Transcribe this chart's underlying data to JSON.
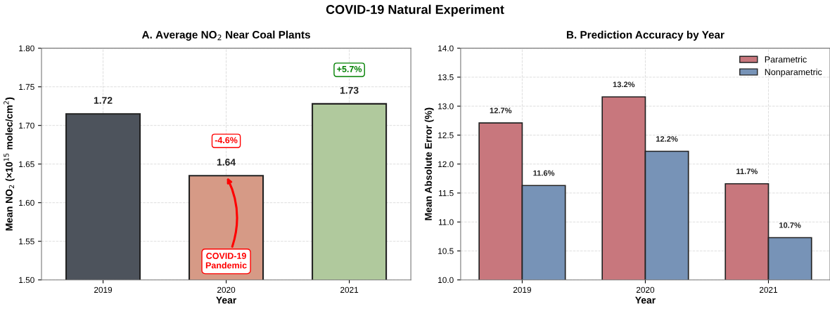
{
  "chart_data": [
    {
      "type": "bar",
      "title": "A. Average NO$_{2}$ Near Coal Plants",
      "xlabel": "Year",
      "ylabel": "Mean NO$_{2}$ (×10$^{15}$ molec/cm$^{2}$)",
      "categories": [
        "2019",
        "2020",
        "2021"
      ],
      "values": [
        1.715,
        1.635,
        1.728
      ],
      "colors": [
        "#4d535c",
        "#d69a86",
        "#b0c99d"
      ],
      "value_labels": [
        "1.72",
        "1.64",
        "1.73"
      ],
      "ylim": [
        1.5,
        1.8
      ],
      "yticks": [
        {
          "value": 1.5,
          "label": "1.50"
        },
        1.55,
        {
          "value": 1.6,
          "label": "1.60"
        },
        1.65,
        {
          "value": 1.7,
          "label": "1.70"
        },
        1.75,
        {
          "value": 1.8,
          "label": "1.80"
        }
      ],
      "grid": true,
      "annotations": [
        "COVID-19 Natural Experiment",
        {
          "text": "-4.6%",
          "x": "2020",
          "y": 1.68
        },
        {
          "text": "+5.7%",
          "x": "2021",
          "y": 1.772
        },
        {
          "text": "COVID-19\nPandemic",
          "x": "2020",
          "y": 1.635
        }
      ]
    },
    {
      "type": "bar",
      "title": "B. Prediction Accuracy by Year",
      "xlabel": "Year",
      "ylabel": "Mean Absolute Error (%)",
      "categories": [
        "2019",
        "2020",
        "2021"
      ],
      "series": [
        {
          "name": "Parametric",
          "color": "#c8777d",
          "values": [
            12.71,
            13.16,
            11.66
          ],
          "value_labels": [
            "12.7%",
            "13.2%",
            "11.7%"
          ]
        },
        {
          "name": "Nonparametric",
          "color": "#7793b7",
          "values": [
            11.63,
            12.22,
            10.73
          ],
          "value_labels": [
            "11.6%",
            "12.2%",
            "10.7%"
          ]
        }
      ],
      "ylim": [
        10.0,
        14.0
      ],
      "yticks": [
        {
          "value": 10,
          "label": "10.0"
        },
        10.5,
        {
          "value": 11,
          "label": "11.0"
        },
        11.5,
        {
          "value": 12,
          "label": "12.0"
        },
        12.5,
        {
          "value": 13,
          "label": "13.0"
        },
        13.5,
        {
          "value": 14,
          "label": "14.0"
        }
      ],
      "grid": true,
      "legend": "top right"
    }
  ]
}
